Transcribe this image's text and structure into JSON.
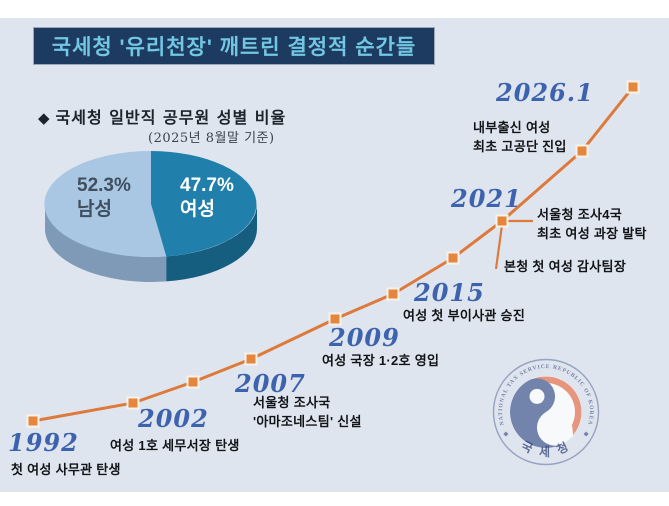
{
  "title": "국세청 '유리천장' 깨트린 결정적 순간들",
  "pie": {
    "heading_bullet": "◆",
    "heading": "국세청 일반직 공무원 성별 비율",
    "subtitle": "(2025년 8월말 기준)",
    "slices": [
      {
        "label": "남성",
        "pct": "52.3%",
        "value": 52.3,
        "display": "52.3%\n남성",
        "color": "#a9c6e2"
      },
      {
        "label": "여성",
        "pct": "47.7%",
        "value": 47.7,
        "display": "47.7%\n여성",
        "color": "#2180ab"
      }
    ]
  },
  "timeline": {
    "events": [
      {
        "year": "1992",
        "notes": [
          "첫 여성 사무관 탄생"
        ]
      },
      {
        "year": "2002",
        "notes": [
          "여성 1호 세무서장 탄생"
        ]
      },
      {
        "year": "2007",
        "notes": [
          "서울청 조사국\n'아마조네스팀' 신설"
        ]
      },
      {
        "year": "2009",
        "notes": [
          "여성 국장 1·2호 영입"
        ]
      },
      {
        "year": "2015",
        "notes": [
          "여성 첫 부이사관 승진"
        ]
      },
      {
        "year": "2021",
        "notes": [
          "서울청 조사4국\n최초 여성 과장 발탁",
          "본청 첫 여성 감사팀장"
        ]
      },
      {
        "year": "2026.1",
        "notes": [
          "내부출신 여성\n최초 고공단 진입"
        ]
      }
    ]
  },
  "logo": {
    "ring_text": "NATIONAL TAX SERVICE REPUBLIC OF KOREA",
    "name_ko": "국 세 청"
  },
  "colors": {
    "background": "#dfe5ee",
    "title_bg": "#1d3a60",
    "title_fg": "#72c7e3",
    "year_blue": "#3e63ae",
    "line_orange": "#dd7a3b",
    "marker_orange": "#e5863e",
    "pie_male": "#a9c6e2",
    "pie_female": "#2180ab",
    "pie_male_side": "#7e9ab6",
    "pie_female_side": "#155e7f",
    "logo_navy": "#6476a3",
    "logo_salmon": "#e88b6f"
  },
  "chart_data": [
    {
      "type": "pie",
      "title": "국세청 일반직 공무원 성별 비율",
      "note": "(2025년 8월말 기준)",
      "labels": [
        "남성",
        "여성"
      ],
      "values": [
        52.3,
        47.7
      ],
      "colors": [
        "#a9c6e2",
        "#2180ab"
      ],
      "style": "3d-pie, split starts at 12 o'clock, female slice on right"
    },
    {
      "type": "line",
      "title": "국세청 '유리천장' 깨트린 결정적 순간들",
      "x": [
        "1992",
        "2002",
        "2007",
        "2009",
        "2015",
        "2021",
        "2026.1"
      ],
      "annotations": [
        "첫 여성 사무관 탄생",
        "여성 1호 세무서장 탄생",
        "서울청 조사국 '아마조네스팀' 신설",
        "여성 국장 1·2호 영입",
        "여성 첫 부이사관 승진",
        "서울청 조사4국 최초 여성 과장 발탁 / 본청 첫 여성 감사팀장",
        "내부출신 여성 최초 고공단 진입"
      ],
      "style": "stylized ascending timeline curve, orange square markers, no axes, grid off, no legend"
    }
  ]
}
